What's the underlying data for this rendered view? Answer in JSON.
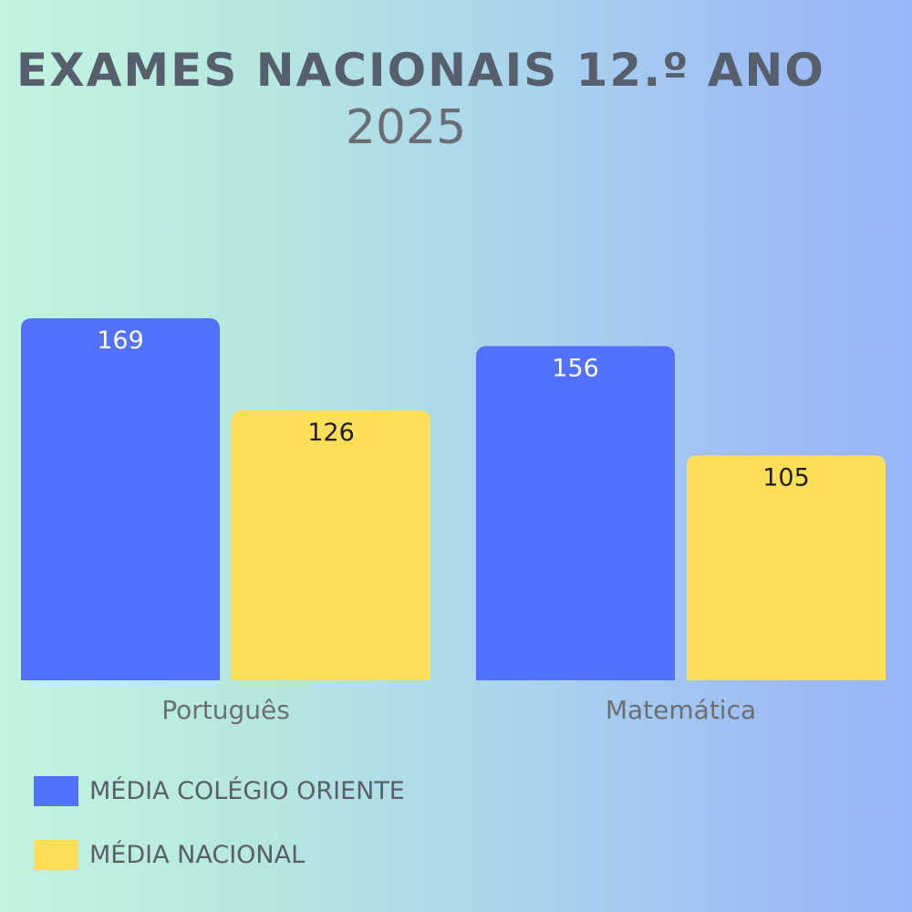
{
  "title": "EXAMES NACIONAIS 12.º ANO",
  "subtitle": "2025",
  "colors": {
    "college": "#5271ff",
    "national": "#ffde59",
    "axis_text": "#6b6e73"
  },
  "chart_data": {
    "type": "bar",
    "categories": [
      "Português",
      "Matemática"
    ],
    "series": [
      {
        "name": "MÉDIA COLÉGIO ORIENTE",
        "values": [
          169,
          156
        ]
      },
      {
        "name": "MÉDIA NACIONAL",
        "values": [
          126,
          105
        ]
      }
    ],
    "ylim": [
      0,
      169
    ],
    "grid": false,
    "legend": "bottom-left",
    "title": "EXAMES NACIONAIS 12.º ANO",
    "subtitle": "2025",
    "xlabel": "",
    "ylabel": ""
  }
}
